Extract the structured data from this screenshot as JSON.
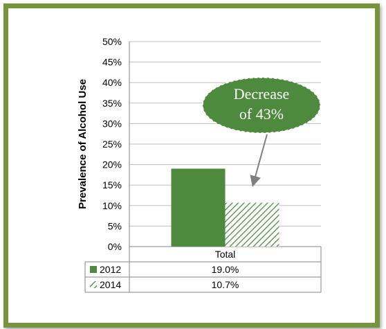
{
  "colors": {
    "frame_border": "#77933c",
    "bar_fill": "#4e8a3e",
    "hatch_stroke": "#4e8a3e",
    "callout_fill": "#4e8a3e",
    "gridline": "#bfbfbf"
  },
  "chart_data": {
    "type": "bar",
    "categories": [
      "Total"
    ],
    "series": [
      {
        "name": "2012",
        "values": [
          19.0
        ],
        "value_label": "19.0%",
        "pattern": "solid"
      },
      {
        "name": "2014",
        "values": [
          10.7
        ],
        "value_label": "10.7%",
        "pattern": "diagonal-hatch"
      }
    ],
    "ylabel": "Prevalence of Alcohol Use",
    "ylim": [
      0,
      50
    ],
    "yticks": [
      0,
      5,
      10,
      15,
      20,
      25,
      30,
      35,
      40,
      45,
      50
    ],
    "ytick_labels": [
      "0%",
      "5%",
      "10%",
      "15%",
      "20%",
      "25%",
      "30%",
      "35%",
      "40%",
      "45%",
      "50%"
    ],
    "grid": true,
    "data_table": true,
    "annotation": {
      "line1": "Decrease",
      "line2": "of 43%",
      "points_to_series": "2014"
    }
  }
}
